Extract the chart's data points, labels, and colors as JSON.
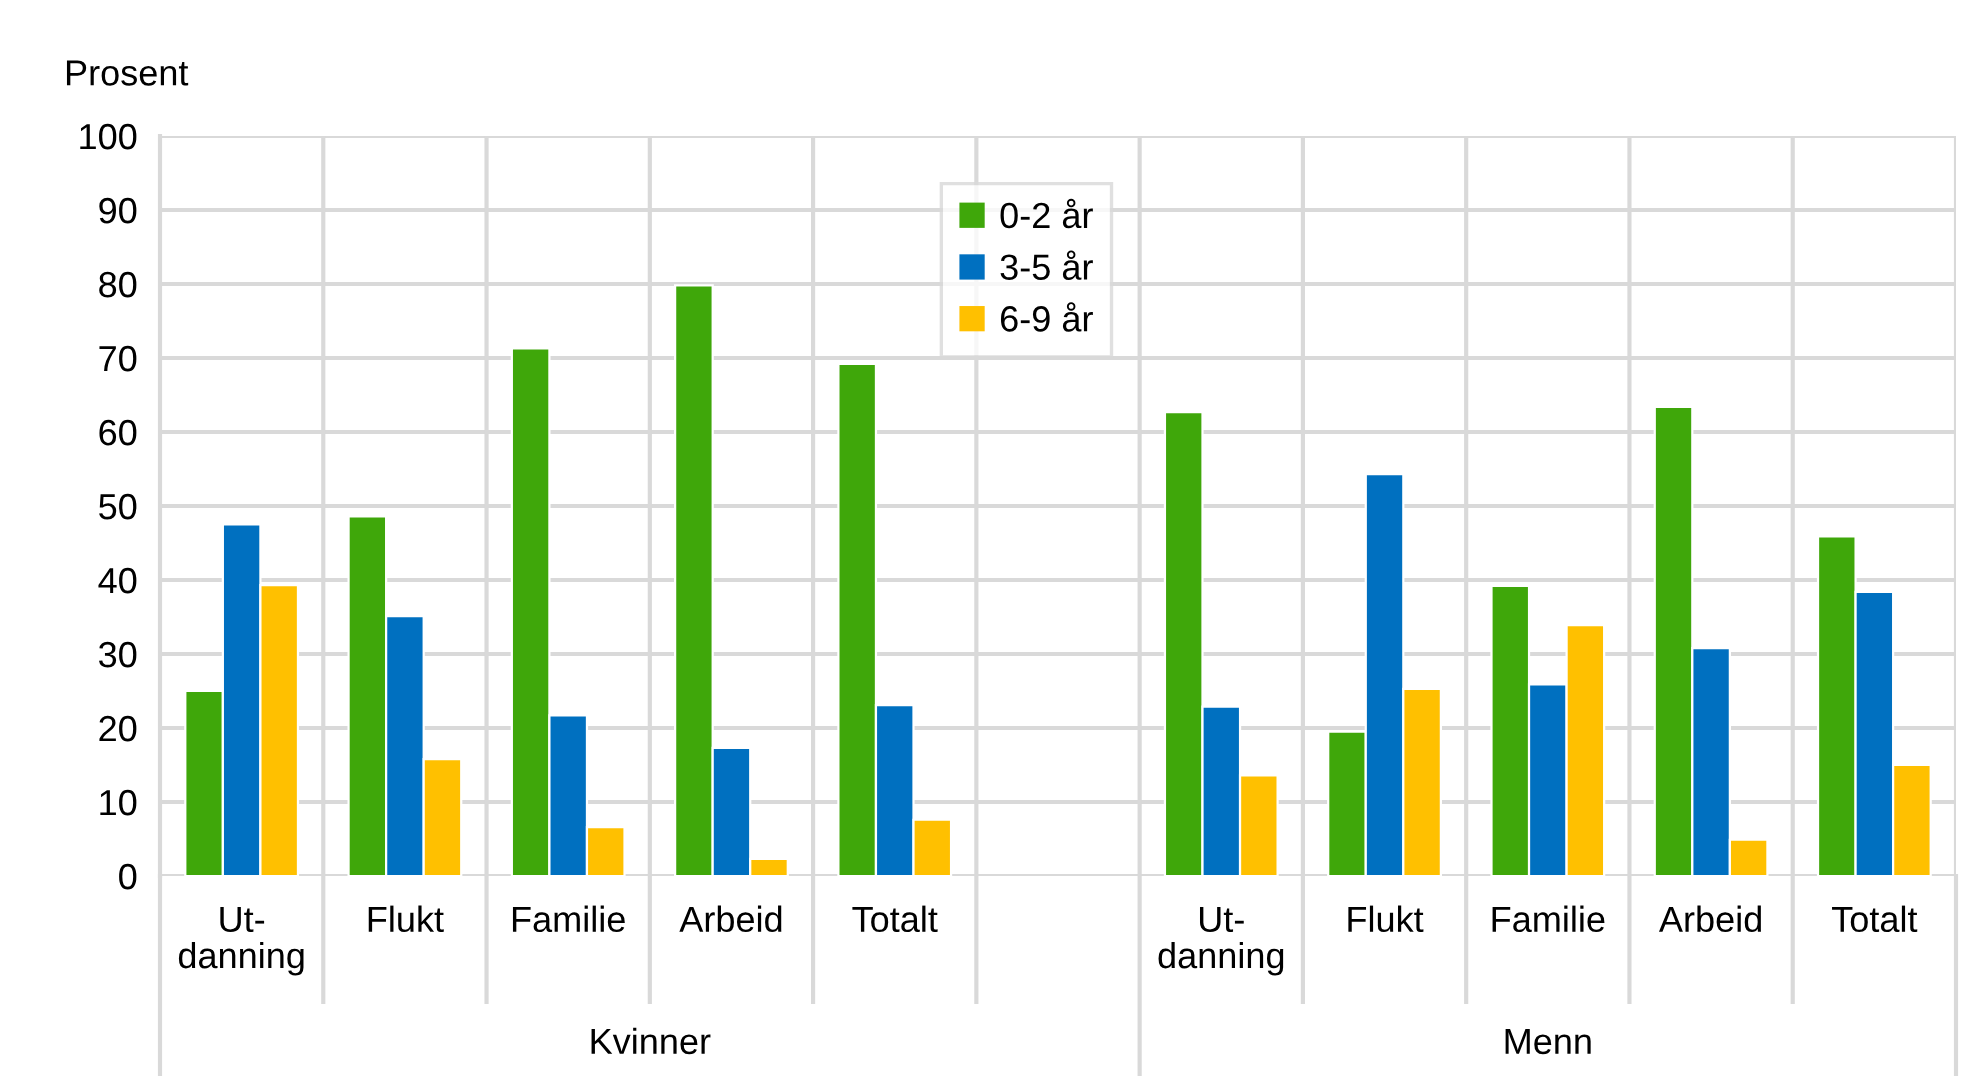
{
  "chart_data": {
    "type": "bar",
    "ylabel": "Prosent",
    "categories": [
      "Ut-\ndanning",
      "Flukt",
      "Familie",
      "Arbeid",
      "Totalt",
      null,
      "Ut-\ndanning",
      "Flukt",
      "Familie",
      "Arbeid",
      "Totalt"
    ],
    "series": [
      {
        "name": "0-2 år",
        "color": "#3fa70a",
        "values": [
          25.0,
          48.6,
          71.3,
          79.8,
          69.2,
          null,
          62.7,
          19.5,
          39.2,
          63.4,
          45.9
        ]
      },
      {
        "name": "3-5 år",
        "color": "#0070c0",
        "values": [
          47.5,
          35.1,
          21.7,
          17.3,
          23.1,
          null,
          22.9,
          54.3,
          25.9,
          30.8,
          38.4
        ]
      },
      {
        "name": "6-9 år",
        "color": "#ffc000",
        "values": [
          39.3,
          15.8,
          6.6,
          2.3,
          7.6,
          null,
          13.6,
          25.3,
          33.9,
          4.9,
          15.0
        ]
      }
    ],
    "annotations": [
      "Kvinner",
      "Menn"
    ],
    "ylim": [
      0,
      100
    ],
    "yticks": [
      0,
      10,
      20,
      30,
      40,
      50,
      60,
      70,
      80,
      90,
      100
    ],
    "grid": true,
    "legend": "top"
  }
}
